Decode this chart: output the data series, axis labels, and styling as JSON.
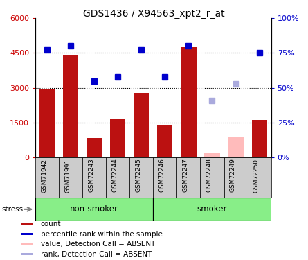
{
  "title": "GDS1436 / X94563_xpt2_r_at",
  "samples": [
    "GSM71942",
    "GSM71991",
    "GSM72243",
    "GSM72244",
    "GSM72245",
    "GSM72246",
    "GSM72247",
    "GSM72248",
    "GSM72249",
    "GSM72250"
  ],
  "count_values": [
    2950,
    4380,
    820,
    1680,
    2780,
    1380,
    4750,
    null,
    null,
    1620
  ],
  "count_absent_values": [
    null,
    null,
    null,
    null,
    null,
    null,
    null,
    200,
    870,
    null
  ],
  "rank_values": [
    77,
    80,
    55,
    58,
    77,
    58,
    80,
    null,
    null,
    75
  ],
  "rank_absent_values": [
    null,
    null,
    null,
    null,
    null,
    null,
    null,
    41,
    53,
    null
  ],
  "ylim_left": [
    0,
    6000
  ],
  "ylim_right": [
    0,
    100
  ],
  "yticks_left": [
    0,
    1500,
    3000,
    4500,
    6000
  ],
  "ytick_labels_left": [
    "0",
    "1500",
    "3000",
    "4500",
    "6000"
  ],
  "yticks_right": [
    0,
    25,
    50,
    75,
    100
  ],
  "ytick_labels_right": [
    "0%",
    "25%",
    "50%",
    "75%",
    "100%"
  ],
  "bar_color_present": "#bb1111",
  "bar_color_absent": "#ffbbbb",
  "rank_color_present": "#0000cc",
  "rank_color_absent": "#aaaadd",
  "group_bg_color": "#88ee88",
  "tick_label_area_color": "#cccccc",
  "group_labels": [
    "non-smoker",
    "smoker"
  ],
  "legend_items": [
    {
      "label": "count",
      "color": "#bb1111"
    },
    {
      "label": "percentile rank within the sample",
      "color": "#0000cc"
    },
    {
      "label": "value, Detection Call = ABSENT",
      "color": "#ffbbbb"
    },
    {
      "label": "rank, Detection Call = ABSENT",
      "color": "#aaaadd"
    }
  ],
  "stress_label": "stress"
}
